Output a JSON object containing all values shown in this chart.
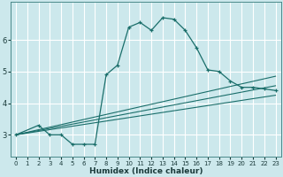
{
  "xlabel": "Humidex (Indice chaleur)",
  "background_color": "#cce8ec",
  "grid_color": "#ffffff",
  "line_color": "#1a6e6a",
  "xlim": [
    -0.5,
    23.5
  ],
  "ylim": [
    2.3,
    7.2
  ],
  "yticks": [
    3,
    4,
    5,
    6
  ],
  "xticks": [
    0,
    1,
    2,
    3,
    4,
    5,
    6,
    7,
    8,
    9,
    10,
    11,
    12,
    13,
    14,
    15,
    16,
    17,
    18,
    19,
    20,
    21,
    22,
    23
  ],
  "curve1_x": [
    0,
    2,
    3,
    4,
    5,
    6,
    7,
    8,
    9,
    10,
    11,
    12,
    13,
    14,
    15,
    16,
    17,
    18,
    19,
    20,
    21,
    22,
    23
  ],
  "curve1_y": [
    3.0,
    3.3,
    3.0,
    3.0,
    2.7,
    2.7,
    2.7,
    4.9,
    5.2,
    6.4,
    6.55,
    6.3,
    6.7,
    6.65,
    6.3,
    5.75,
    5.05,
    5.0,
    4.7,
    4.5,
    4.5,
    4.45,
    4.4
  ],
  "line1_x": [
    0,
    23
  ],
  "line1_y": [
    3.0,
    4.85
  ],
  "line2_x": [
    0,
    23
  ],
  "line2_y": [
    3.0,
    4.55
  ],
  "line3_x": [
    0,
    23
  ],
  "line3_y": [
    3.0,
    4.25
  ]
}
